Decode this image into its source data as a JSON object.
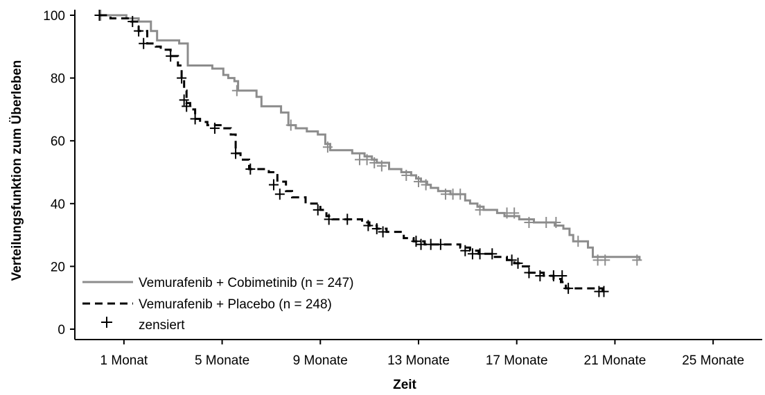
{
  "chart_data": {
    "type": "line",
    "title": "",
    "xlabel": "Zeit",
    "ylabel": "Verteilungsfunktion zum Überleben",
    "x_unit": "Monate",
    "xlim": [
      -1,
      27
    ],
    "ylim": [
      0,
      100
    ],
    "x_ticks": [
      {
        "value": 1,
        "label": "1 Monat"
      },
      {
        "value": 5,
        "label": "5 Monate"
      },
      {
        "value": 9,
        "label": "9 Monate"
      },
      {
        "value": 13,
        "label": "13 Monate"
      },
      {
        "value": 17,
        "label": "17 Monate"
      },
      {
        "value": 21,
        "label": "21 Monate"
      },
      {
        "value": 25,
        "label": "25 Monate"
      }
    ],
    "y_ticks": [
      0,
      20,
      40,
      60,
      80,
      100
    ],
    "grid": false,
    "legend_position": "bottom-left",
    "censor_label": "zensiert",
    "series": [
      {
        "name": "Vemurafenib + Cobimetinib (n = 247)",
        "color": "#8c8c8c",
        "style": "solid",
        "x": [
          0,
          1.05,
          1.1,
          1.45,
          1.6,
          2.1,
          2.35,
          3.25,
          3.6,
          4.0,
          4.6,
          5.05,
          5.25,
          5.5,
          5.65,
          6.4,
          6.6,
          7.4,
          7.7,
          8.0,
          8.45,
          8.9,
          9.2,
          9.4,
          10.3,
          10.8,
          11.1,
          11.3,
          11.8,
          12.3,
          12.7,
          12.9,
          13.1,
          13.35,
          13.5,
          13.8,
          14.3,
          14.6,
          14.9,
          15.1,
          15.4,
          15.65,
          16.2,
          16.5,
          17.1,
          17.7,
          18.55,
          18.9,
          19.15,
          19.3,
          19.9,
          20.1,
          22.0
        ],
        "y": [
          100,
          100,
          99,
          99,
          98,
          95,
          92,
          91,
          84,
          84,
          83,
          81,
          80,
          79,
          76,
          74,
          71,
          69,
          65,
          64,
          63,
          62,
          59,
          57,
          56,
          55,
          54,
          53,
          51,
          50,
          49,
          48,
          47,
          46,
          45,
          44,
          43,
          43,
          41,
          40,
          39,
          38,
          37,
          36,
          35,
          34,
          33,
          32,
          30,
          28,
          26,
          23,
          22
        ],
        "censored": [
          {
            "x": 0.05,
            "y": 100
          },
          {
            "x": 5.6,
            "y": 76
          },
          {
            "x": 7.8,
            "y": 65
          },
          {
            "x": 9.3,
            "y": 58
          },
          {
            "x": 10.6,
            "y": 54
          },
          {
            "x": 10.9,
            "y": 54
          },
          {
            "x": 11.2,
            "y": 53
          },
          {
            "x": 11.5,
            "y": 52
          },
          {
            "x": 12.5,
            "y": 49
          },
          {
            "x": 13.0,
            "y": 47
          },
          {
            "x": 13.3,
            "y": 46
          },
          {
            "x": 14.1,
            "y": 43
          },
          {
            "x": 14.4,
            "y": 43
          },
          {
            "x": 14.7,
            "y": 43
          },
          {
            "x": 15.5,
            "y": 38
          },
          {
            "x": 16.6,
            "y": 37
          },
          {
            "x": 16.9,
            "y": 37
          },
          {
            "x": 17.5,
            "y": 34
          },
          {
            "x": 18.2,
            "y": 34
          },
          {
            "x": 18.6,
            "y": 34
          },
          {
            "x": 19.5,
            "y": 28
          },
          {
            "x": 20.3,
            "y": 22
          },
          {
            "x": 20.6,
            "y": 22
          },
          {
            "x": 21.9,
            "y": 22
          }
        ]
      },
      {
        "name": "Vemurafenib + Placebo (n = 248)",
        "color": "#000000",
        "style": "dashed",
        "x": [
          0,
          0.45,
          1.3,
          1.6,
          1.95,
          2.3,
          2.5,
          2.9,
          3.2,
          3.35,
          3.45,
          3.55,
          3.7,
          3.9,
          4.1,
          4.4,
          5.05,
          5.35,
          5.55,
          5.75,
          6.1,
          6.9,
          7.25,
          7.6,
          7.85,
          8.4,
          9.0,
          9.25,
          9.5,
          10.7,
          11.0,
          11.3,
          11.7,
          12.4,
          12.8,
          13.25,
          13.7,
          14.7,
          15.1,
          15.45,
          16.0,
          16.6,
          16.9,
          17.2,
          17.5,
          18.1,
          18.5,
          18.8,
          19.0,
          20.5
        ],
        "y": [
          100,
          99,
          98,
          95,
          91,
          90,
          89,
          87,
          84,
          80,
          76,
          72,
          70,
          67,
          66,
          65,
          64,
          62,
          56,
          54,
          51,
          50,
          47,
          44,
          42,
          40,
          38,
          36,
          35,
          34,
          33,
          32,
          31,
          29,
          28,
          27,
          27,
          26,
          25,
          24,
          23,
          22,
          21,
          20,
          18,
          17,
          16,
          15,
          13,
          12
        ],
        "censored": [
          {
            "x": 0.0,
            "y": 100
          },
          {
            "x": 1.35,
            "y": 98
          },
          {
            "x": 1.6,
            "y": 95
          },
          {
            "x": 1.8,
            "y": 91
          },
          {
            "x": 2.9,
            "y": 87
          },
          {
            "x": 3.35,
            "y": 80
          },
          {
            "x": 3.45,
            "y": 73
          },
          {
            "x": 3.55,
            "y": 71
          },
          {
            "x": 3.9,
            "y": 67
          },
          {
            "x": 4.7,
            "y": 64
          },
          {
            "x": 5.55,
            "y": 56
          },
          {
            "x": 6.15,
            "y": 51
          },
          {
            "x": 7.1,
            "y": 46
          },
          {
            "x": 7.35,
            "y": 43
          },
          {
            "x": 8.9,
            "y": 38
          },
          {
            "x": 9.35,
            "y": 35
          },
          {
            "x": 10.1,
            "y": 35
          },
          {
            "x": 10.95,
            "y": 33
          },
          {
            "x": 11.3,
            "y": 32
          },
          {
            "x": 11.55,
            "y": 31
          },
          {
            "x": 12.9,
            "y": 28
          },
          {
            "x": 13.1,
            "y": 27
          },
          {
            "x": 13.5,
            "y": 27
          },
          {
            "x": 13.9,
            "y": 27
          },
          {
            "x": 14.9,
            "y": 25
          },
          {
            "x": 15.2,
            "y": 24
          },
          {
            "x": 15.5,
            "y": 24
          },
          {
            "x": 16.0,
            "y": 24
          },
          {
            "x": 16.8,
            "y": 22
          },
          {
            "x": 17.05,
            "y": 21
          },
          {
            "x": 17.5,
            "y": 18
          },
          {
            "x": 17.95,
            "y": 17
          },
          {
            "x": 18.5,
            "y": 17
          },
          {
            "x": 18.85,
            "y": 17
          },
          {
            "x": 19.1,
            "y": 13
          },
          {
            "x": 20.35,
            "y": 12
          },
          {
            "x": 20.55,
            "y": 12
          }
        ]
      }
    ]
  }
}
